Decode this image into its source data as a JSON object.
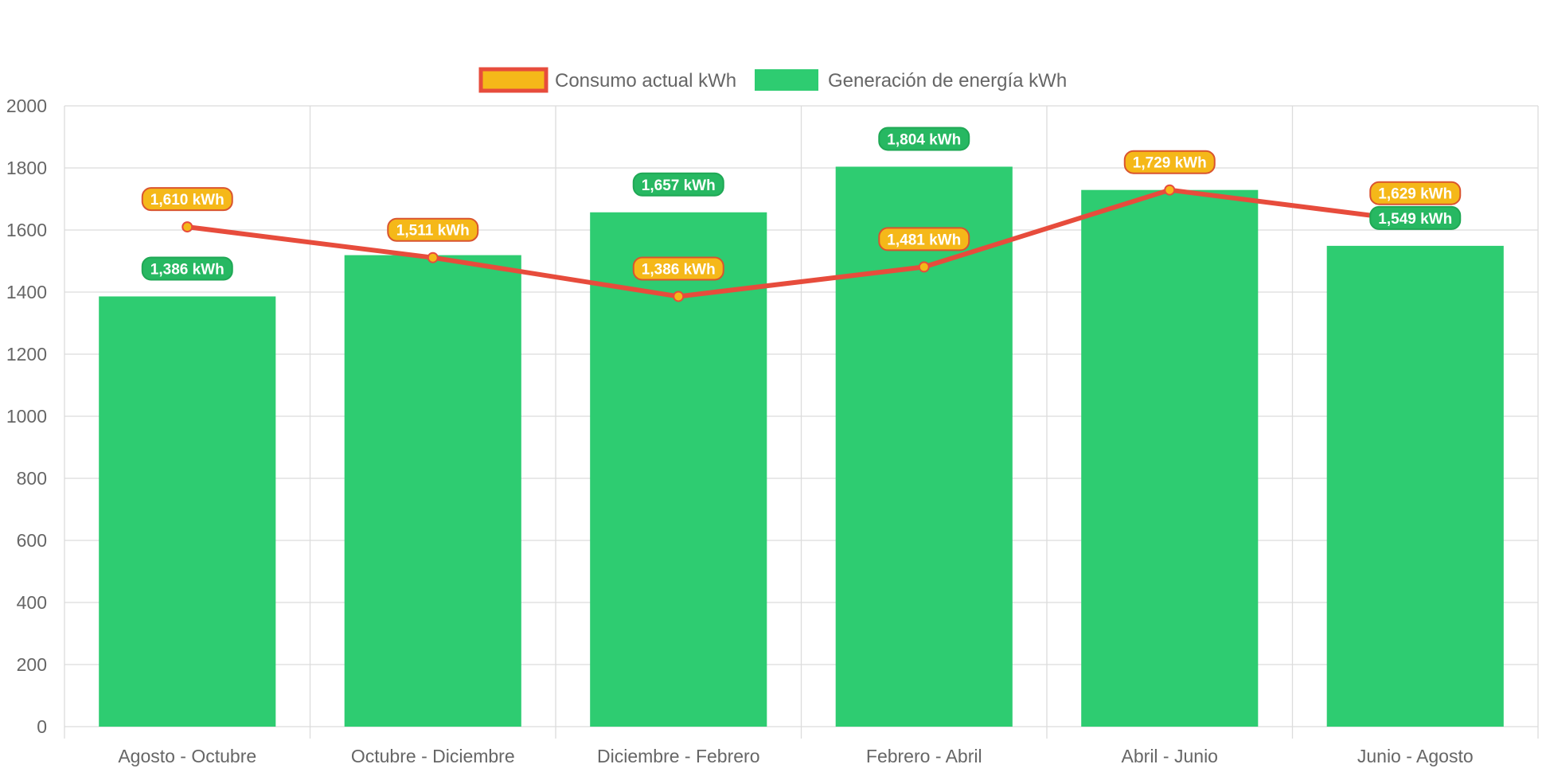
{
  "chart_data": {
    "type": "bar",
    "categories": [
      "Agosto - Octubre",
      "Octubre - Diciembre",
      "Diciembre - Febrero",
      "Febrero - Abril",
      "Abril - Junio",
      "Junio - Agosto"
    ],
    "series": [
      {
        "name": "Consumo actual kWh",
        "type": "line",
        "values": [
          1610,
          1511,
          1386,
          1481,
          1729,
          1629
        ],
        "labels": [
          "1,610 kWh",
          "1,511 kWh",
          "1,386 kWh",
          "1,481 kWh",
          "1,729 kWh",
          "1,629 kWh"
        ],
        "color": "#e74c3c",
        "fill": "#f5b819"
      },
      {
        "name": "Generación de energía kWh",
        "type": "bar",
        "values": [
          1386,
          1519,
          1657,
          1804,
          1729,
          1549
        ],
        "labels": [
          "1,386 kWh",
          "",
          "1,657 kWh",
          "1,804 kWh",
          "",
          "1,549 kWh"
        ],
        "color": "#2ecc71",
        "label_bg": "#27b862"
      }
    ],
    "yticks": [
      "0",
      "200",
      "400",
      "600",
      "800",
      "1000",
      "1200",
      "1400",
      "1600",
      "1800",
      "2000"
    ],
    "ylim": [
      0,
      2000
    ],
    "grid": true,
    "legend": "top-center"
  }
}
